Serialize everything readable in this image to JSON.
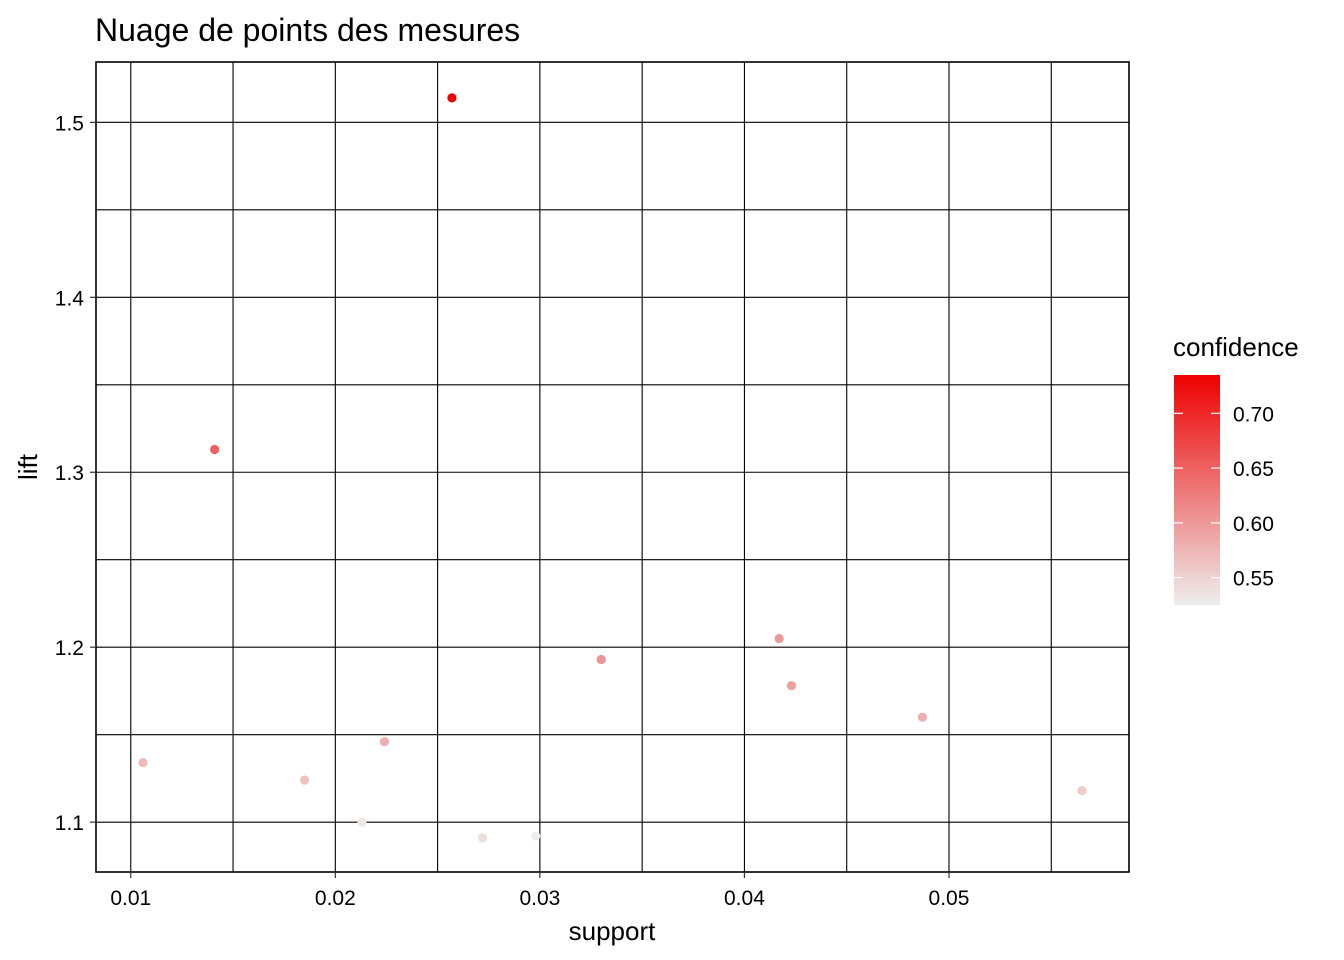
{
  "chart_data": {
    "type": "scatter",
    "title": "Nuage de points des  mesures",
    "xlabel": "support",
    "ylabel": "lift",
    "xlim": [
      0.0083,
      0.0588
    ],
    "ylim": [
      1.0715,
      1.5345
    ],
    "x_ticks": [
      0.01,
      0.02,
      0.03,
      0.04,
      0.05
    ],
    "x_tick_labels": [
      "0.01",
      "0.02",
      "0.03",
      "0.04",
      "0.05"
    ],
    "y_ticks": [
      1.1,
      1.2,
      1.3,
      1.4,
      1.5
    ],
    "y_tick_labels": [
      "1.1",
      "1.2",
      "1.3",
      "1.4",
      "1.5"
    ],
    "grid": true,
    "color_scale": {
      "title": "confidence",
      "low": 0.525,
      "high": 0.735,
      "low_color": "#eeeeee",
      "high_color": "#ee0000",
      "ticks": [
        0.55,
        0.6,
        0.65,
        0.7
      ],
      "tick_labels": [
        "0.55",
        "0.60",
        "0.65",
        "0.70"
      ],
      "legend_position": "right"
    },
    "points": [
      {
        "support": 0.0257,
        "lift": 1.514,
        "confidence": 0.735
      },
      {
        "support": 0.0141,
        "lift": 1.313,
        "confidence": 0.65
      },
      {
        "support": 0.0106,
        "lift": 1.134,
        "confidence": 0.57
      },
      {
        "support": 0.0185,
        "lift": 1.124,
        "confidence": 0.565
      },
      {
        "support": 0.0224,
        "lift": 1.146,
        "confidence": 0.58
      },
      {
        "support": 0.0213,
        "lift": 1.1,
        "confidence": 0.53
      },
      {
        "support": 0.0272,
        "lift": 1.091,
        "confidence": 0.54
      },
      {
        "support": 0.0298,
        "lift": 1.092,
        "confidence": 0.525
      },
      {
        "support": 0.033,
        "lift": 1.193,
        "confidence": 0.605
      },
      {
        "support": 0.0417,
        "lift": 1.205,
        "confidence": 0.6
      },
      {
        "support": 0.0423,
        "lift": 1.178,
        "confidence": 0.595
      },
      {
        "support": 0.0487,
        "lift": 1.16,
        "confidence": 0.58
      },
      {
        "support": 0.0565,
        "lift": 1.118,
        "confidence": 0.555
      }
    ]
  }
}
